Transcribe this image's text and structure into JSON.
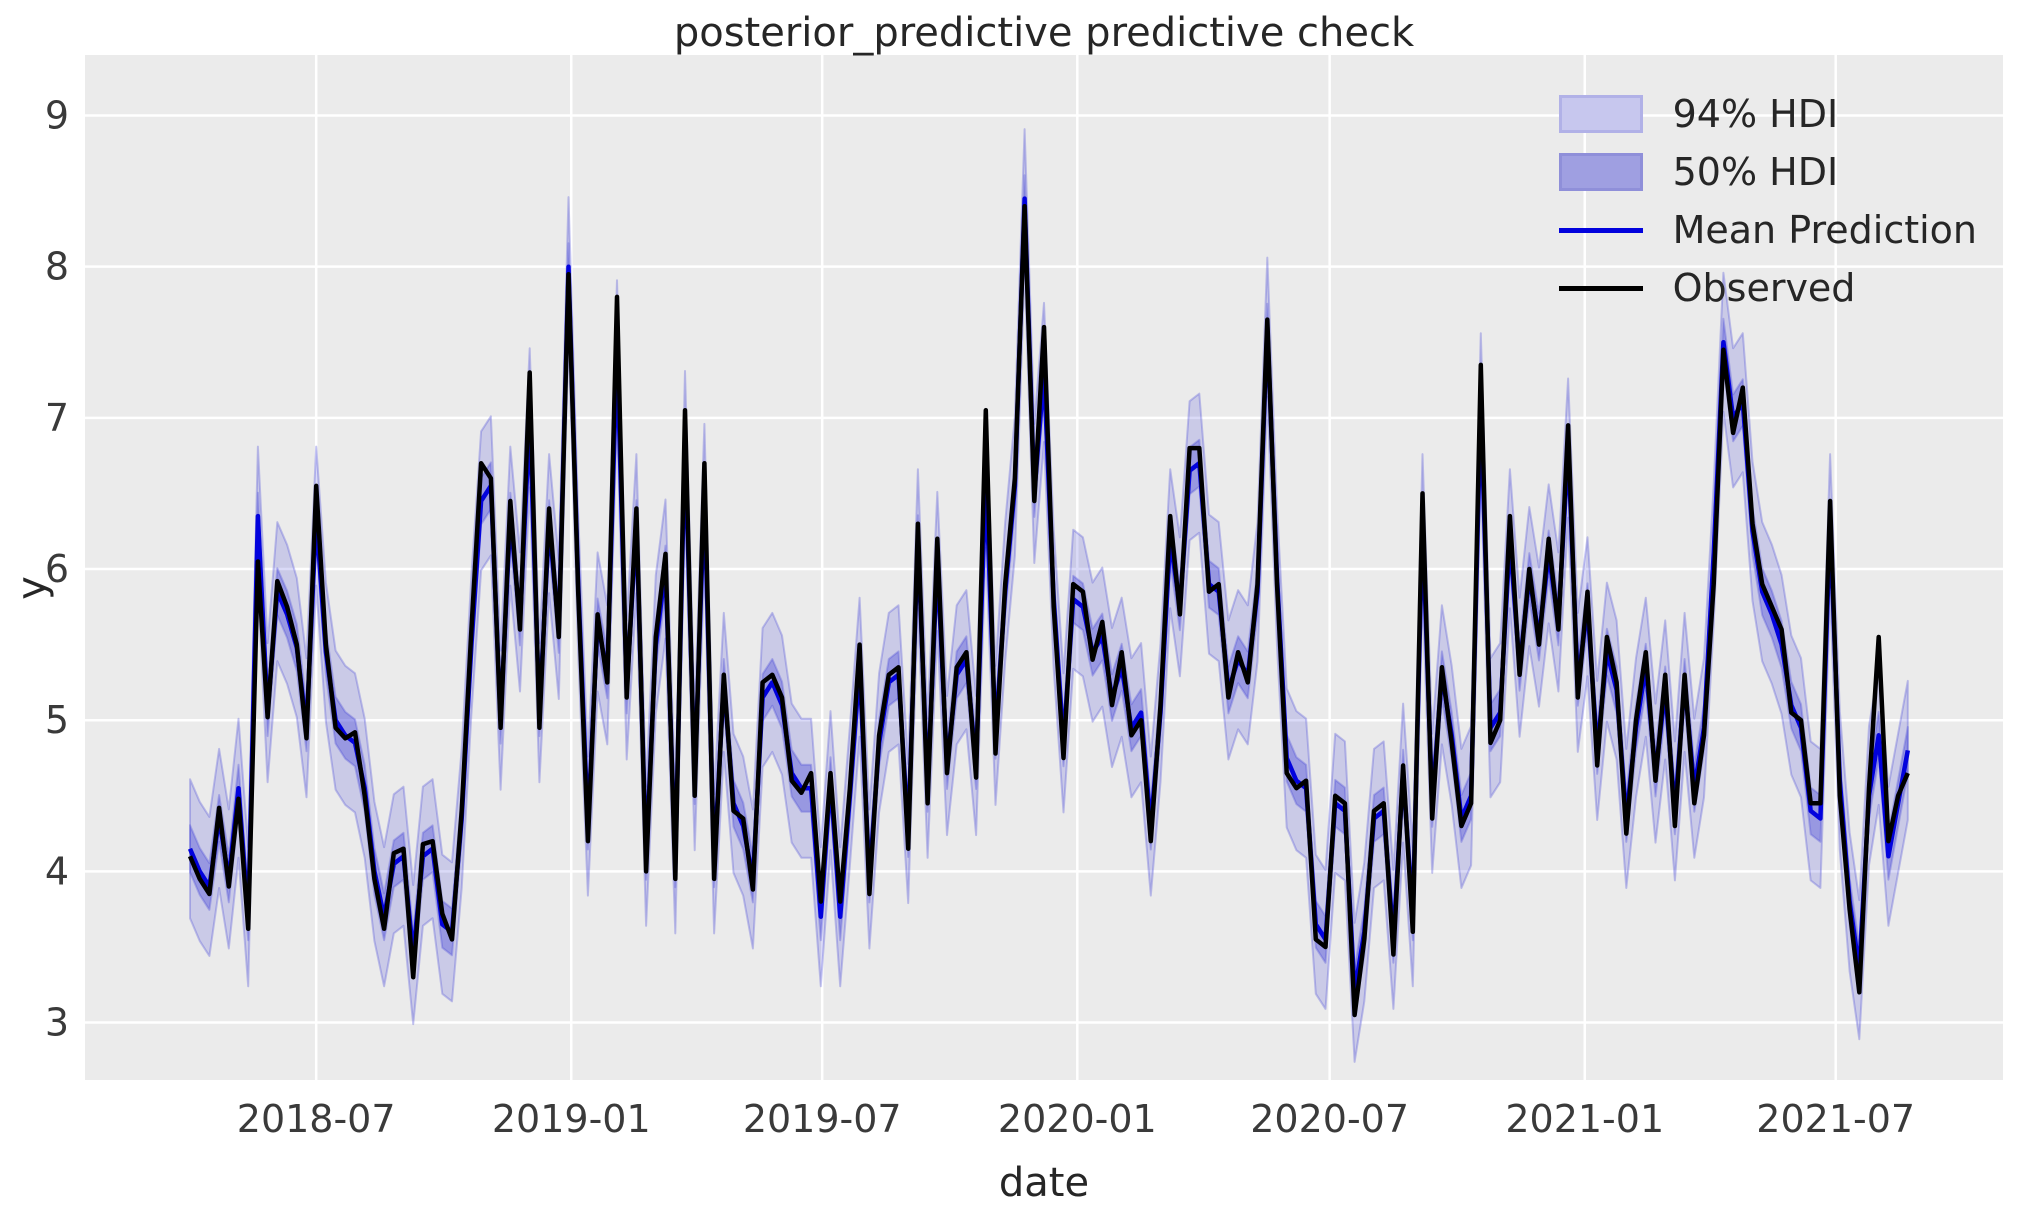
{
  "figure": {
    "title": "posterior_predictive predictive check",
    "xlabel": "date",
    "ylabel": "y"
  },
  "legend": {
    "items": [
      {
        "label": "94% HDI",
        "swatch": "band-94-swatch"
      },
      {
        "label": "50% HDI",
        "swatch": "band-50-swatch"
      },
      {
        "label": "Mean Prediction",
        "swatch": "blue-line-swatch"
      },
      {
        "label": "Observed",
        "swatch": "black-line-swatch"
      }
    ]
  },
  "colors": {
    "plot_background": "#ebebeb",
    "grid": "#ffffff",
    "text": "#262626",
    "tick_text": "#3a3a3a",
    "observed_line": "#000000",
    "mean_line": "#0202dd",
    "hdi_fill_rgb": "70,70,215",
    "hdi94_fill_alpha": 0.2,
    "hdi50_fill_alpha": 0.38,
    "hdi_edge_alpha": 0.3
  },
  "chart_data": {
    "type": "line",
    "title": "posterior_predictive predictive check",
    "xlabel": "date",
    "ylabel": "y",
    "x_start_date": "2018-04-01",
    "x_step_days": 7,
    "n_points": 178,
    "grid": true,
    "legend_position": "upper right",
    "ylim": [
      2.62,
      9.4
    ],
    "y_ticks": [
      3,
      4,
      5,
      6,
      7,
      8,
      9
    ],
    "x_ticks": [
      {
        "label": "2018-07",
        "day_offset": 91
      },
      {
        "label": "2019-01",
        "day_offset": 275
      },
      {
        "label": "2019-07",
        "day_offset": 456
      },
      {
        "label": "2020-01",
        "day_offset": 640
      },
      {
        "label": "2020-07",
        "day_offset": 822
      },
      {
        "label": "2021-01",
        "day_offset": 1006
      },
      {
        "label": "2021-07",
        "day_offset": 1187
      }
    ],
    "bands": [
      {
        "name": "94% HDI",
        "halfwidth": 0.46
      },
      {
        "name": "50% HDI",
        "halfwidth": 0.155
      }
    ],
    "series": [
      {
        "name": "Observed",
        "color": "#000000",
        "values": [
          4.1,
          3.95,
          3.85,
          4.42,
          3.9,
          4.48,
          3.62,
          6.05,
          5.02,
          5.92,
          5.75,
          5.5,
          4.88,
          6.55,
          5.5,
          4.95,
          4.88,
          4.92,
          4.5,
          3.95,
          3.62,
          4.12,
          4.15,
          3.3,
          4.18,
          4.2,
          3.72,
          3.55,
          4.4,
          5.6,
          6.7,
          6.6,
          4.95,
          6.45,
          5.6,
          7.3,
          4.95,
          6.4,
          5.55,
          7.95,
          5.85,
          4.2,
          5.7,
          5.25,
          7.8,
          5.15,
          6.4,
          4.0,
          5.55,
          6.1,
          3.95,
          7.05,
          4.5,
          6.7,
          3.95,
          5.3,
          4.4,
          4.35,
          3.88,
          5.25,
          5.3,
          5.15,
          4.6,
          4.52,
          4.65,
          3.8,
          4.65,
          3.8,
          4.55,
          5.5,
          3.85,
          4.9,
          5.3,
          5.35,
          4.15,
          6.3,
          4.45,
          6.2,
          4.65,
          5.35,
          5.45,
          4.62,
          7.05,
          4.78,
          5.9,
          6.6,
          8.4,
          6.45,
          7.6,
          5.75,
          4.75,
          5.9,
          5.85,
          5.4,
          5.65,
          5.1,
          5.45,
          4.9,
          5.0,
          4.2,
          5.1,
          6.35,
          5.7,
          6.8,
          6.8,
          5.85,
          5.9,
          5.15,
          5.45,
          5.25,
          5.9,
          7.65,
          5.9,
          4.65,
          4.55,
          4.6,
          3.55,
          3.5,
          4.5,
          4.45,
          3.05,
          3.55,
          4.4,
          4.45,
          3.45,
          4.7,
          3.6,
          6.5,
          4.35,
          5.35,
          4.85,
          4.3,
          4.45,
          7.35,
          4.85,
          5.0,
          6.35,
          5.3,
          6.0,
          5.5,
          6.2,
          5.6,
          6.95,
          5.15,
          5.85,
          4.7,
          5.55,
          5.25,
          4.25,
          5.0,
          5.45,
          4.6,
          5.3,
          4.3,
          5.3,
          4.45,
          4.9,
          5.9,
          7.45,
          6.9,
          7.2,
          6.3,
          5.9,
          5.75,
          5.6,
          5.05,
          5.0,
          4.45,
          4.45,
          6.45,
          4.5,
          3.75,
          3.2,
          4.55,
          5.55,
          4.2,
          4.5,
          4.65
        ]
      },
      {
        "name": "Mean Prediction",
        "color": "#0202dd",
        "values": [
          4.15,
          4.0,
          3.9,
          4.35,
          3.95,
          4.55,
          3.7,
          6.35,
          5.05,
          5.85,
          5.7,
          5.48,
          4.95,
          6.35,
          5.45,
          5.0,
          4.9,
          4.85,
          4.55,
          4.0,
          3.7,
          4.05,
          4.1,
          3.45,
          4.1,
          4.15,
          3.65,
          3.6,
          4.35,
          5.5,
          6.45,
          6.55,
          5.0,
          6.35,
          5.65,
          7.0,
          5.05,
          6.3,
          5.6,
          8.0,
          5.9,
          4.3,
          5.65,
          5.3,
          7.45,
          5.2,
          6.3,
          4.1,
          5.5,
          6.0,
          4.05,
          6.85,
          4.6,
          6.5,
          4.05,
          5.25,
          4.45,
          4.3,
          3.95,
          5.15,
          5.25,
          5.1,
          4.65,
          4.55,
          4.55,
          3.7,
          4.6,
          3.7,
          4.5,
          5.35,
          3.95,
          4.85,
          5.25,
          5.3,
          4.25,
          6.2,
          4.55,
          6.05,
          4.7,
          5.3,
          5.4,
          4.7,
          6.6,
          4.9,
          5.85,
          6.55,
          8.45,
          6.5,
          7.3,
          5.8,
          4.85,
          5.8,
          5.75,
          5.45,
          5.55,
          5.15,
          5.35,
          4.95,
          5.05,
          4.3,
          5.05,
          6.2,
          5.75,
          6.65,
          6.7,
          5.9,
          5.85,
          5.2,
          5.4,
          5.3,
          5.85,
          7.6,
          5.95,
          4.75,
          4.6,
          4.55,
          3.65,
          3.55,
          4.45,
          4.4,
          3.2,
          3.6,
          4.35,
          4.4,
          3.55,
          4.65,
          3.7,
          6.3,
          4.45,
          5.3,
          4.9,
          4.35,
          4.5,
          7.1,
          4.95,
          5.05,
          6.2,
          5.35,
          5.95,
          5.55,
          6.1,
          5.65,
          6.8,
          5.25,
          5.75,
          4.8,
          5.45,
          5.2,
          4.35,
          4.95,
          5.35,
          4.65,
          5.2,
          4.4,
          5.25,
          4.55,
          4.95,
          6.1,
          7.5,
          7.0,
          7.1,
          6.25,
          5.85,
          5.7,
          5.5,
          5.1,
          4.95,
          4.4,
          4.35,
          6.3,
          4.6,
          3.8,
          3.35,
          4.5,
          4.9,
          4.1,
          4.45,
          4.8
        ]
      }
    ]
  }
}
